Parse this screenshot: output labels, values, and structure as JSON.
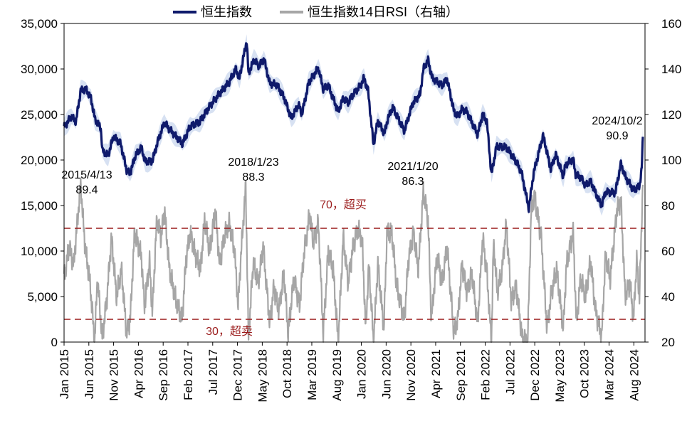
{
  "chart_data": {
    "type": "line",
    "title": "",
    "xlabel": "",
    "ylabel": "",
    "legend": {
      "placement": "top",
      "items": [
        {
          "label": "恒生指数",
          "color": "#0f1a6b"
        },
        {
          "label": "恒生指数14日RSI（右轴）",
          "color": "#a6a6a6"
        }
      ]
    },
    "x_ticks": [
      "Jan 2015",
      "Jun 2015",
      "Nov 2015",
      "Apr 2016",
      "Sep 2016",
      "Feb 2017",
      "Jul 2017",
      "Dec 2017",
      "May 2018",
      "Oct 2018",
      "Mar 2019",
      "Aug 2019",
      "Jan 2020",
      "Jun 2020",
      "Nov 2020",
      "Apr 2021",
      "Sep 2021",
      "Feb 2022",
      "Jul 2022",
      "Dec 2022",
      "May 2023",
      "Oct 2023",
      "Mar 2024",
      "Aug 2024"
    ],
    "x_range": [
      "2015-01-01",
      "2024-10-15"
    ],
    "y_left": {
      "ticks": [
        "0",
        "5,000",
        "10,000",
        "15,000",
        "20,000",
        "25,000",
        "30,000",
        "35,000"
      ],
      "range": [
        0,
        35000
      ]
    },
    "y_right": {
      "ticks": [
        "20",
        "40",
        "60",
        "80",
        "100",
        "120",
        "140",
        "160"
      ],
      "range": [
        20,
        160
      ]
    },
    "series": [
      {
        "name": "恒生指数",
        "axis": "left",
        "color": "#0f1a6b",
        "band_color": "#c9d7ee",
        "points": [
          [
            "2015-01-01",
            23600
          ],
          [
            "2015-02-15",
            24800
          ],
          [
            "2015-03-15",
            24200
          ],
          [
            "2015-04-13",
            27600
          ],
          [
            "2015-05-15",
            27800
          ],
          [
            "2015-06-15",
            26800
          ],
          [
            "2015-07-10",
            24500
          ],
          [
            "2015-08-15",
            23500
          ],
          [
            "2015-08-25",
            21000
          ],
          [
            "2015-09-29",
            20500
          ],
          [
            "2015-11-01",
            22600
          ],
          [
            "2015-12-15",
            21800
          ],
          [
            "2016-01-21",
            18900
          ],
          [
            "2016-02-11",
            18500
          ],
          [
            "2016-03-15",
            20500
          ],
          [
            "2016-04-20",
            21400
          ],
          [
            "2016-05-15",
            19800
          ],
          [
            "2016-06-27",
            19900
          ],
          [
            "2016-08-01",
            22100
          ],
          [
            "2016-09-09",
            24100
          ],
          [
            "2016-10-15",
            23300
          ],
          [
            "2016-12-30",
            21800
          ],
          [
            "2017-02-15",
            23700
          ],
          [
            "2017-04-15",
            24200
          ],
          [
            "2017-06-15",
            25900
          ],
          [
            "2017-08-15",
            27300
          ],
          [
            "2017-10-15",
            28600
          ],
          [
            "2017-11-22",
            30000
          ],
          [
            "2017-12-15",
            29000
          ],
          [
            "2018-01-29",
            33100
          ],
          [
            "2018-02-09",
            29500
          ],
          [
            "2018-03-15",
            31000
          ],
          [
            "2018-04-15",
            30300
          ],
          [
            "2018-05-15",
            31100
          ],
          [
            "2018-06-20",
            28400
          ],
          [
            "2018-08-01",
            28300
          ],
          [
            "2018-09-15",
            26900
          ],
          [
            "2018-10-30",
            24600
          ],
          [
            "2018-12-15",
            26100
          ],
          [
            "2019-01-03",
            25000
          ],
          [
            "2019-02-15",
            28500
          ],
          [
            "2019-04-15",
            30100
          ],
          [
            "2019-05-15",
            27800
          ],
          [
            "2019-06-15",
            28200
          ],
          [
            "2019-08-15",
            25300
          ],
          [
            "2019-09-15",
            26800
          ],
          [
            "2019-10-15",
            26300
          ],
          [
            "2019-11-15",
            27200
          ],
          [
            "2019-12-31",
            28200
          ],
          [
            "2020-01-20",
            29000
          ],
          [
            "2020-02-15",
            27600
          ],
          [
            "2020-03-19",
            21700
          ],
          [
            "2020-04-15",
            24300
          ],
          [
            "2020-05-25",
            22900
          ],
          [
            "2020-06-15",
            24500
          ],
          [
            "2020-07-15",
            25800
          ],
          [
            "2020-09-25",
            23200
          ],
          [
            "2020-11-15",
            26200
          ],
          [
            "2020-12-31",
            27200
          ],
          [
            "2021-01-20",
            30000
          ],
          [
            "2021-02-18",
            31000
          ],
          [
            "2021-03-15",
            29000
          ],
          [
            "2021-05-15",
            28200
          ],
          [
            "2021-06-15",
            28900
          ],
          [
            "2021-07-28",
            25300
          ],
          [
            "2021-08-20",
            24800
          ],
          [
            "2021-09-15",
            25600
          ],
          [
            "2021-10-15",
            25300
          ],
          [
            "2021-12-20",
            22800
          ],
          [
            "2022-01-20",
            25000
          ],
          [
            "2022-02-15",
            24200
          ],
          [
            "2022-03-15",
            18400
          ],
          [
            "2022-04-15",
            21500
          ],
          [
            "2022-06-15",
            21400
          ],
          [
            "2022-07-15",
            20600
          ],
          [
            "2022-08-15",
            19800
          ],
          [
            "2022-09-15",
            18700
          ],
          [
            "2022-10-31",
            14700
          ],
          [
            "2022-11-30",
            18600
          ],
          [
            "2023-01-27",
            22700
          ],
          [
            "2023-03-15",
            19000
          ],
          [
            "2023-04-15",
            20600
          ],
          [
            "2023-05-31",
            18200
          ],
          [
            "2023-06-15",
            19500
          ],
          [
            "2023-07-31",
            20100
          ],
          [
            "2023-08-15",
            18400
          ],
          [
            "2023-09-15",
            18100
          ],
          [
            "2023-10-15",
            17200
          ],
          [
            "2023-11-15",
            17700
          ],
          [
            "2023-12-15",
            16400
          ],
          [
            "2024-01-22",
            15000
          ],
          [
            "2024-02-15",
            16500
          ],
          [
            "2024-04-15",
            16400
          ],
          [
            "2024-05-20",
            19600
          ],
          [
            "2024-06-15",
            18200
          ],
          [
            "2024-08-05",
            16700
          ],
          [
            "2024-09-11",
            17100
          ],
          [
            "2024-09-25",
            19100
          ],
          [
            "2024-10-02",
            22400
          ]
        ]
      },
      {
        "name": "恒生指数14日RSI（右轴）",
        "axis": "right",
        "color": "#a6a6a6",
        "points": [
          [
            "2015-01-01",
            48
          ],
          [
            "2015-02-01",
            62
          ],
          [
            "2015-03-01",
            54
          ],
          [
            "2015-04-13",
            89.4
          ],
          [
            "2015-05-10",
            62
          ],
          [
            "2015-06-10",
            46
          ],
          [
            "2015-07-08",
            20
          ],
          [
            "2015-07-25",
            48
          ],
          [
            "2015-08-24",
            22
          ],
          [
            "2015-09-20",
            38
          ],
          [
            "2015-10-20",
            66
          ],
          [
            "2015-11-20",
            40
          ],
          [
            "2015-12-20",
            52
          ],
          [
            "2016-01-20",
            24
          ],
          [
            "2016-02-12",
            30
          ],
          [
            "2016-03-10",
            68
          ],
          [
            "2016-04-20",
            58
          ],
          [
            "2016-05-10",
            36
          ],
          [
            "2016-06-10",
            55
          ],
          [
            "2016-06-27",
            33
          ],
          [
            "2016-07-25",
            74
          ],
          [
            "2016-08-20",
            66
          ],
          [
            "2016-09-10",
            78
          ],
          [
            "2016-10-10",
            52
          ],
          [
            "2016-11-20",
            38
          ],
          [
            "2016-12-28",
            30
          ],
          [
            "2017-01-20",
            56
          ],
          [
            "2017-02-15",
            68
          ],
          [
            "2017-03-20",
            58
          ],
          [
            "2017-04-20",
            52
          ],
          [
            "2017-05-15",
            74
          ],
          [
            "2017-06-15",
            60
          ],
          [
            "2017-07-20",
            78
          ],
          [
            "2017-08-15",
            54
          ],
          [
            "2017-09-15",
            67
          ],
          [
            "2017-10-15",
            72
          ],
          [
            "2017-11-15",
            60
          ],
          [
            "2017-12-07",
            36
          ],
          [
            "2017-12-28",
            62
          ],
          [
            "2018-01-23",
            88.3
          ],
          [
            "2018-02-09",
            22
          ],
          [
            "2018-03-10",
            55
          ],
          [
            "2018-04-10",
            46
          ],
          [
            "2018-05-10",
            62
          ],
          [
            "2018-06-20",
            28
          ],
          [
            "2018-07-15",
            44
          ],
          [
            "2018-08-15",
            34
          ],
          [
            "2018-09-15",
            50
          ],
          [
            "2018-10-11",
            24
          ],
          [
            "2018-11-15",
            48
          ],
          [
            "2018-12-20",
            36
          ],
          [
            "2019-01-15",
            58
          ],
          [
            "2019-02-20",
            76
          ],
          [
            "2019-03-15",
            64
          ],
          [
            "2019-04-15",
            72
          ],
          [
            "2019-05-15",
            24
          ],
          [
            "2019-06-15",
            60
          ],
          [
            "2019-07-15",
            52
          ],
          [
            "2019-08-15",
            20
          ],
          [
            "2019-09-15",
            66
          ],
          [
            "2019-10-15",
            46
          ],
          [
            "2019-11-15",
            62
          ],
          [
            "2019-12-15",
            70
          ],
          [
            "2020-01-10",
            64
          ],
          [
            "2020-01-31",
            26
          ],
          [
            "2020-02-20",
            54
          ],
          [
            "2020-03-19",
            20
          ],
          [
            "2020-04-15",
            54
          ],
          [
            "2020-05-22",
            26
          ],
          [
            "2020-06-10",
            68
          ],
          [
            "2020-07-10",
            68
          ],
          [
            "2020-08-10",
            44
          ],
          [
            "2020-09-25",
            30
          ],
          [
            "2020-10-20",
            56
          ],
          [
            "2020-11-20",
            68
          ],
          [
            "2020-12-20",
            52
          ],
          [
            "2021-01-20",
            86.3
          ],
          [
            "2021-02-18",
            74
          ],
          [
            "2021-03-10",
            30
          ],
          [
            "2021-04-15",
            58
          ],
          [
            "2021-05-15",
            46
          ],
          [
            "2021-06-15",
            62
          ],
          [
            "2021-07-27",
            24
          ],
          [
            "2021-08-20",
            30
          ],
          [
            "2021-09-15",
            54
          ],
          [
            "2021-10-15",
            42
          ],
          [
            "2021-11-15",
            50
          ],
          [
            "2021-12-20",
            28
          ],
          [
            "2022-01-20",
            66
          ],
          [
            "2022-02-15",
            50
          ],
          [
            "2022-03-15",
            20
          ],
          [
            "2022-03-28",
            64
          ],
          [
            "2022-04-20",
            42
          ],
          [
            "2022-05-20",
            52
          ],
          [
            "2022-06-15",
            72
          ],
          [
            "2022-07-15",
            38
          ],
          [
            "2022-08-15",
            44
          ],
          [
            "2022-09-20",
            22
          ],
          [
            "2022-10-24",
            20
          ],
          [
            "2022-11-15",
            78
          ],
          [
            "2022-12-05",
            84
          ],
          [
            "2023-01-15",
            66
          ],
          [
            "2023-02-20",
            26
          ],
          [
            "2023-03-20",
            42
          ],
          [
            "2023-04-20",
            52
          ],
          [
            "2023-05-31",
            26
          ],
          [
            "2023-06-20",
            54
          ],
          [
            "2023-07-31",
            68
          ],
          [
            "2023-08-20",
            28
          ],
          [
            "2023-09-15",
            48
          ],
          [
            "2023-10-15",
            40
          ],
          [
            "2023-11-15",
            56
          ],
          [
            "2023-12-15",
            34
          ],
          [
            "2024-01-22",
            22
          ],
          [
            "2024-02-15",
            58
          ],
          [
            "2024-03-15",
            48
          ],
          [
            "2024-04-25",
            78
          ],
          [
            "2024-05-20",
            82
          ],
          [
            "2024-06-15",
            40
          ],
          [
            "2024-07-15",
            46
          ],
          [
            "2024-08-05",
            30
          ],
          [
            "2024-08-25",
            56
          ],
          [
            "2024-09-11",
            40
          ],
          [
            "2024-10-02",
            90.9
          ]
        ]
      }
    ],
    "reference_lines": [
      {
        "axis": "right",
        "value": 70,
        "label": "70，超买",
        "color": "#9b1c1c"
      },
      {
        "axis": "right",
        "value": 30,
        "label": "30，超卖",
        "color": "#9b1c1c"
      }
    ],
    "annotations": [
      {
        "date": "2015-04-13",
        "text_date": "2015/4/13",
        "text_value": "89.4"
      },
      {
        "date": "2018-01-23",
        "text_date": "2018/1/23",
        "text_value": "88.3"
      },
      {
        "date": "2021-01-20",
        "text_date": "2021/1/20",
        "text_value": "86.3"
      },
      {
        "date": "2024-10-02",
        "text_date": "2024/10/2",
        "text_value": "90.9"
      }
    ],
    "grid": false
  }
}
